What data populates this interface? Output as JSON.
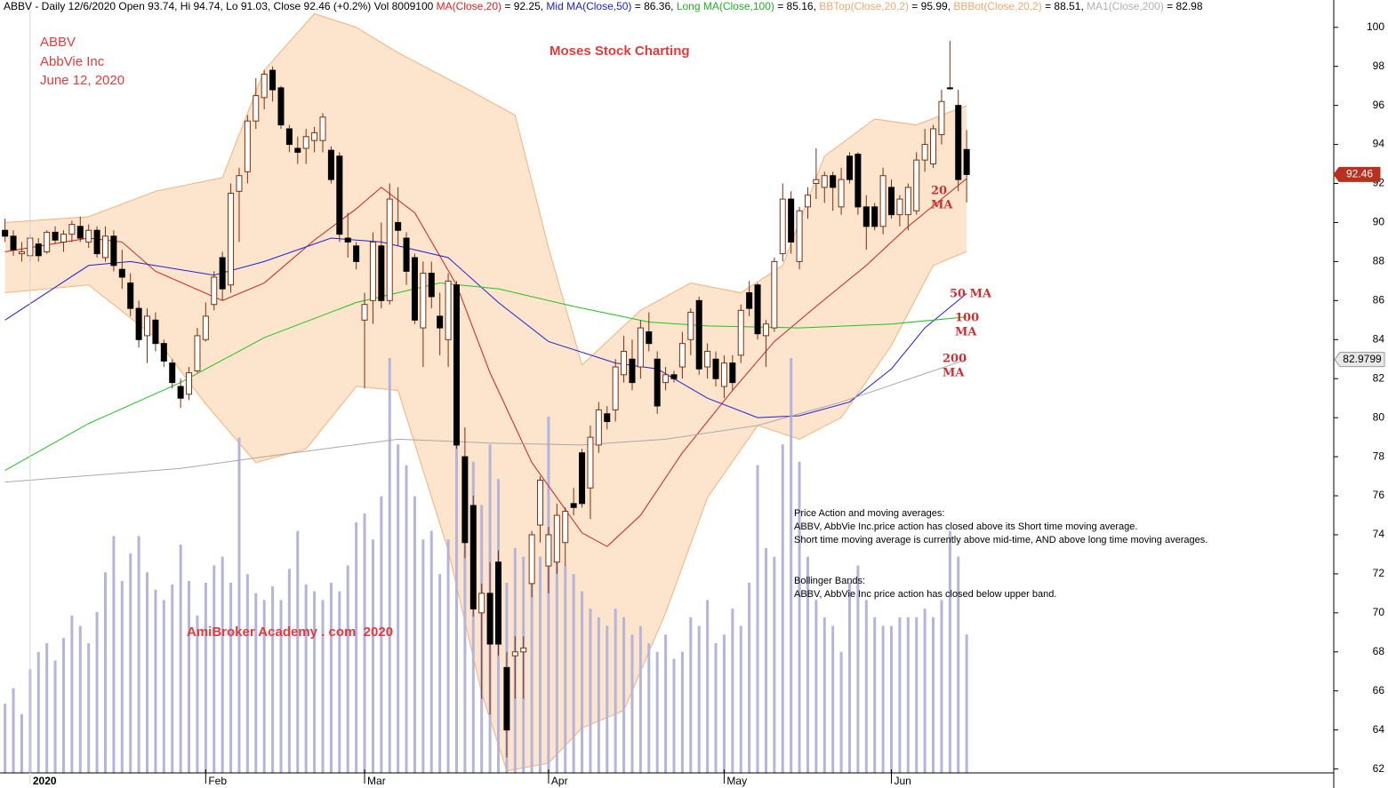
{
  "chart_data": {
    "type": "candlestick",
    "header": [
      {
        "text": "ABBV - Daily 12/6/2020 Open 93.74, Hi 94.74, Lo 91.03, Close 92.46 (+0.2%) Vol 8009100 ",
        "color": "#000000"
      },
      {
        "text": "MA(Close,20)",
        "color": "#e02020"
      },
      {
        "text": " = 92.25, ",
        "color": "#000000"
      },
      {
        "text": "Mid MA(Close,50)",
        "color": "#2020d0"
      },
      {
        "text": " = 86.36, ",
        "color": "#000000"
      },
      {
        "text": "Long MA(Close,100)",
        "color": "#20b020"
      },
      {
        "text": " = 85.16, ",
        "color": "#000000"
      },
      {
        "text": "BBTop(Close,20,2)",
        "color": "#f0a870"
      },
      {
        "text": " = 95.99, ",
        "color": "#000000"
      },
      {
        "text": "BBBot(Close,20,2)",
        "color": "#f0a870"
      },
      {
        "text": " = 88.51, ",
        "color": "#000000"
      },
      {
        "text": "MA1(Close,200)",
        "color": "#b0b0b0"
      },
      {
        "text": " = 82.98",
        "color": "#000000"
      }
    ],
    "annotations": [
      "ABBV",
      "AbbVie Inc",
      "June 12, 2020",
      "Moses Stock Charting",
      "AmiBroker Academy . com  2020"
    ],
    "ma_labels": [
      [
        "20",
        "MA"
      ],
      [
        "50 MA"
      ],
      [
        "100",
        "MA"
      ],
      [
        "200",
        "MA"
      ]
    ],
    "notes": [
      "Price Action and moving averages:",
      "ABBV, AbbVie Inc.price action has closed above its Short time moving average.",
      "Short time moving average is currently above mid-time, AND above long time moving averages.",
      "Bollinger Bands:",
      "ABBV, AbbVie Inc price action has closed below upper band."
    ],
    "xlim": [
      -0.6,
      158.9
    ],
    "xticks": [
      {
        "value": 3,
        "label": "2020"
      },
      {
        "value": 24,
        "label": "Feb"
      },
      {
        "value": 43,
        "label": "Mar"
      },
      {
        "value": 65,
        "label": "Apr"
      },
      {
        "value": 86,
        "label": "May"
      },
      {
        "value": 106,
        "label": "Jun"
      }
    ],
    "ylim": [
      61.8,
      101.4
    ],
    "yticks": [
      62,
      64,
      66,
      68,
      70,
      72,
      74,
      76,
      78,
      80,
      82,
      84,
      86,
      88,
      90,
      92,
      94,
      96,
      98,
      100
    ],
    "candles": {
      "up_color": "#ffffff",
      "down_color": "#000000",
      "outline": "#7a3010",
      "open": [
        89.6,
        89.3,
        88.4,
        88.3,
        88.9,
        88.5,
        89.5,
        89.0,
        89.4,
        89.8,
        89.0,
        89.6,
        88.2,
        89.3,
        87.6,
        86.9,
        85.6,
        84.2,
        85.0,
        83.8,
        82.8,
        81.6,
        81.2,
        82.4,
        84.0,
        85.8,
        88.2,
        86.8,
        91.6,
        92.6,
        95.2,
        96.4,
        97.8,
        96.9,
        94.8,
        93.8,
        93.8,
        94.2,
        94.2,
        93.7,
        93.4,
        89.2,
        88.8,
        85.0,
        86.0,
        88.8,
        86.0,
        90.0,
        89.2,
        88.2,
        84.6,
        87.4,
        85.2,
        84.0,
        86.8,
        78.0,
        75.5,
        70.0,
        71.0,
        72.6,
        67.2,
        67.8,
        68.0,
        71.5,
        74.5,
        72.4,
        72.6,
        73.6,
        75.6,
        78.2,
        76.4,
        78.6,
        80.2,
        80.4,
        82.2,
        83.0,
        82.6,
        84.4,
        83.0,
        81.8,
        82.2,
        82.6,
        84.0,
        86.0,
        82.6,
        83.0,
        81.6,
        82.8,
        83.2,
        86.4,
        86.8,
        84.2,
        84.6,
        88.4,
        91.2,
        88.0,
        90.8,
        92.0,
        91.8,
        92.4,
        90.8,
        93.4,
        93.5,
        90.8,
        90.8,
        89.8,
        91.8,
        90.4,
        90.4,
        90.6,
        93.2,
        93.0,
        94.5,
        96.9,
        96.0,
        93.74
      ],
      "high": [
        90.2,
        89.6,
        89.0,
        89.4,
        89.2,
        89.6,
        89.8,
        89.6,
        90.1,
        90.3,
        89.9,
        89.8,
        89.8,
        89.6,
        88.6,
        87.4,
        86.0,
        85.6,
        85.4,
        84.0,
        83.0,
        82.0,
        82.6,
        84.6,
        85.9,
        87.5,
        88.5,
        92.0,
        92.8,
        95.5,
        97.4,
        97.8,
        98.0,
        97.0,
        95.0,
        94.4,
        94.8,
        94.9,
        95.6,
        93.9,
        93.6,
        90.5,
        89.0,
        86.4,
        89.5,
        90.0,
        92.0,
        91.8,
        89.5,
        88.4,
        88.0,
        88.0,
        86.4,
        87.4,
        87.0,
        79.5,
        76.0,
        71.5,
        72.6,
        73.2,
        68.0,
        68.8,
        68.8,
        74.2,
        77.0,
        74.4,
        75.6,
        75.4,
        76.4,
        78.4,
        79.6,
        80.8,
        80.6,
        83.0,
        84.2,
        84.0,
        85.0,
        85.4,
        83.4,
        82.6,
        82.4,
        84.4,
        85.6,
        86.2,
        83.8,
        83.4,
        83.2,
        83.2,
        85.8,
        87.0,
        86.9,
        85.0,
        88.2,
        92.0,
        91.6,
        90.8,
        91.8,
        93.8,
        92.6,
        92.6,
        92.8,
        93.6,
        93.6,
        91.4,
        91.0,
        92.8,
        92.2,
        91.4,
        92.0,
        93.6,
        94.8,
        95.0,
        96.8,
        99.3,
        96.8,
        94.74
      ],
      "low": [
        89.0,
        88.3,
        88.0,
        88.0,
        88.0,
        88.4,
        88.9,
        88.5,
        89.0,
        89.0,
        88.7,
        88.2,
        88.0,
        87.5,
        86.6,
        85.2,
        83.6,
        82.8,
        83.4,
        82.6,
        81.5,
        80.5,
        80.9,
        82.3,
        83.9,
        85.5,
        86.0,
        86.4,
        89.0,
        92.0,
        94.8,
        95.8,
        96.2,
        94.8,
        93.6,
        93.0,
        93.0,
        93.6,
        93.6,
        92.0,
        89.0,
        88.2,
        87.6,
        81.5,
        84.8,
        85.6,
        85.8,
        88.8,
        86.8,
        84.8,
        82.6,
        85.6,
        83.2,
        82.6,
        78.4,
        72.8,
        69.8,
        65.6,
        64.8,
        67.8,
        62.6,
        65.6,
        65.6,
        70.8,
        73.6,
        71.0,
        72.0,
        72.4,
        75.0,
        75.4,
        74.8,
        78.2,
        79.4,
        79.8,
        81.8,
        81.4,
        82.0,
        83.4,
        80.2,
        81.4,
        81.8,
        82.0,
        83.2,
        82.2,
        82.0,
        81.6,
        81.0,
        81.4,
        82.8,
        85.2,
        84.0,
        82.6,
        84.4,
        88.0,
        88.4,
        87.6,
        90.2,
        91.2,
        91.0,
        90.6,
        90.4,
        92.0,
        90.4,
        88.6,
        89.6,
        89.4,
        90.2,
        89.8,
        89.6,
        90.4,
        92.6,
        92.8,
        94.0,
        96.8,
        91.6,
        91.03
      ],
      "close": [
        89.3,
        88.6,
        88.5,
        89.2,
        88.3,
        89.5,
        89.1,
        89.4,
        89.9,
        89.2,
        89.6,
        88.4,
        89.3,
        87.8,
        87.2,
        85.6,
        84.0,
        85.2,
        83.8,
        82.9,
        81.8,
        81.0,
        82.3,
        84.2,
        85.2,
        87.2,
        86.6,
        91.5,
        92.4,
        95.2,
        96.5,
        97.6,
        96.8,
        95.0,
        94.0,
        93.6,
        94.4,
        94.6,
        95.4,
        92.2,
        89.4,
        89.0,
        88.0,
        85.8,
        89.0,
        86.0,
        91.2,
        89.6,
        87.5,
        85.0,
        87.4,
        86.2,
        84.6,
        87.0,
        78.6,
        73.6,
        70.2,
        71.0,
        68.4,
        68.4,
        64.0,
        68.0,
        68.2,
        74.0,
        76.8,
        74.0,
        75.0,
        75.2,
        75.4,
        75.6,
        79.0,
        80.4,
        79.8,
        82.6,
        83.4,
        81.8,
        84.6,
        83.8,
        80.6,
        82.2,
        82.0,
        83.8,
        85.4,
        82.5,
        83.4,
        82.0,
        82.8,
        81.8,
        85.5,
        85.6,
        84.3,
        84.8,
        88.0,
        91.2,
        89.0,
        90.6,
        91.4,
        92.2,
        92.4,
        91.8,
        92.2,
        92.2,
        90.8,
        89.8,
        89.8,
        92.4,
        90.4,
        91.2,
        91.8,
        93.2,
        94.0,
        94.8,
        96.2,
        96.9,
        92.2,
        92.46
      ]
    },
    "volume": {
      "color": "#b4b4dc",
      "lim": [
        0,
        44700000
      ],
      "values": [
        4000000,
        4900000,
        3400000,
        6000000,
        7000000,
        7500000,
        6500000,
        7800000,
        9100000,
        8500000,
        7500000,
        9300000,
        11600000,
        13700000,
        11100000,
        12700000,
        13700000,
        11600000,
        10600000,
        10000000,
        10900000,
        13200000,
        11100000,
        9100000,
        11000000,
        12000000,
        12500000,
        11000000,
        19400000,
        11500000,
        10400000,
        10000000,
        10800000,
        10000000,
        11800000,
        14000000,
        10900000,
        10500000,
        10000000,
        11000000,
        10500000,
        12000000,
        14500000,
        15000000,
        13500000,
        16000000,
        24000000,
        19000000,
        17800000,
        16000000,
        13500000,
        14000000,
        11500000,
        13500000,
        23500000,
        17000000,
        18000000,
        15500000,
        19000000,
        17000000,
        11000000,
        13000000,
        12500000,
        11000000,
        12500000,
        20600000,
        13000000,
        12000000,
        11500000,
        10500000,
        9500000,
        9000000,
        8500000,
        9500000,
        9000000,
        8000000,
        8500000,
        7500000,
        7000000,
        8000000,
        6600000,
        7000000,
        9000000,
        8500000,
        10000000,
        7500000,
        8000000,
        9500000,
        8500000,
        11000000,
        17800000,
        13000000,
        12500000,
        19000000,
        24000000,
        18000000,
        12500000,
        10000000,
        9000000,
        8500000,
        7000000,
        11000000,
        12000000,
        10000000,
        9000000,
        8500000,
        8500000,
        9000000,
        9000000,
        9000000,
        9500000,
        9000000,
        10000000,
        14000000,
        12500000,
        8009100
      ]
    },
    "bands": {
      "fill": "#fde4cc",
      "edge": "#f2b27c",
      "upper": {
        "x": [
          0,
          10,
          18,
          26,
          31,
          37,
          42,
          47,
          55,
          61,
          65,
          69,
          76,
          82,
          88,
          93,
          98,
          104,
          109,
          115
        ],
        "values": [
          90,
          90.3,
          91.6,
          92.3,
          97.8,
          100.7,
          100,
          98.7,
          96.9,
          95.5,
          88.7,
          82.7,
          85.5,
          86.9,
          86.4,
          87.8,
          93.4,
          95.3,
          95,
          95.99
        ]
      },
      "lower": {
        "x": [
          0,
          10,
          18,
          24,
          30,
          36,
          42,
          47,
          53,
          57,
          60,
          65,
          69,
          74,
          79,
          84,
          90,
          95,
          100,
          106,
          111,
          115
        ],
        "values": [
          86.4,
          86.8,
          84.1,
          80.7,
          77.7,
          78.4,
          81.6,
          81.4,
          73.2,
          65.9,
          61.9,
          62.3,
          64.1,
          65,
          70,
          75.9,
          79.6,
          78.9,
          80,
          83.7,
          87.8,
          88.51
        ]
      }
    },
    "series": [
      {
        "color": "#d02020",
        "x": [
          0,
          10,
          14,
          18,
          26,
          31,
          37,
          42,
          45,
          49,
          54,
          58,
          63,
          69,
          72,
          76,
          81,
          87,
          92,
          97,
          103,
          108,
          115
        ],
        "values": [
          88.5,
          89.2,
          89.0,
          87.5,
          86.0,
          86.9,
          89.1,
          90.7,
          91.8,
          90.5,
          86.8,
          82.3,
          77.7,
          74.1,
          73.4,
          75,
          78.2,
          81.4,
          83.9,
          85.7,
          87.8,
          89.8,
          92.25
        ]
      },
      {
        "color": "#1f1fd6",
        "x": [
          0,
          10,
          15,
          25,
          31,
          39,
          45,
          53,
          59,
          65,
          73,
          78,
          84,
          90,
          95,
          101,
          106,
          110,
          115
        ],
        "values": [
          85,
          87.8,
          88,
          87.3,
          88,
          89.2,
          89,
          88.2,
          85.9,
          83.9,
          82.8,
          82.5,
          81,
          80,
          80.1,
          80.8,
          82.5,
          84.6,
          86.36
        ]
      },
      {
        "color": "#22c022",
        "x": [
          0,
          10,
          21,
          31,
          42,
          52,
          59,
          68,
          77,
          84,
          95,
          106,
          115
        ],
        "values": [
          77.3,
          79.7,
          81.8,
          84.1,
          85.9,
          86.9,
          86.6,
          85.7,
          84.9,
          84.7,
          84.6,
          84.8,
          85.16
        ]
      },
      {
        "color": "#a8a8a8",
        "x": [
          0,
          21,
          31,
          47,
          58,
          69,
          79,
          90,
          100,
          115
        ],
        "values": [
          76.7,
          77.4,
          78,
          78.9,
          78.7,
          78.6,
          78.9,
          79.6,
          80.8,
          82.98
        ]
      }
    ],
    "price_tags": [
      {
        "value": 92.46,
        "color": "#b8301e"
      },
      {
        "value": 82.9799,
        "color": "#e8e8e8"
      }
    ]
  }
}
